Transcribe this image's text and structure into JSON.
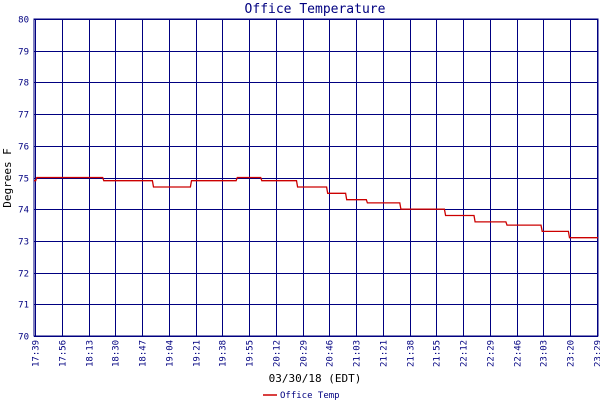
{
  "chart_data": {
    "type": "line",
    "title": "Office Temperature",
    "xlabel": "03/30/18 (EDT)",
    "ylabel": "Degrees F",
    "ylim": [
      70,
      80
    ],
    "yticks": [
      "70",
      "71",
      "72",
      "73",
      "74",
      "75",
      "76",
      "77",
      "78",
      "79",
      "80"
    ],
    "xticks": [
      "17:39",
      "17:56",
      "18:13",
      "18:30",
      "18:47",
      "19:04",
      "19:21",
      "19:38",
      "19:55",
      "20:12",
      "20:29",
      "20:46",
      "21:03",
      "21:21",
      "21:38",
      "21:55",
      "22:12",
      "22:29",
      "22:46",
      "23:03",
      "23:20",
      "23:29"
    ],
    "grid": true,
    "legend_position": "bottom-center",
    "colors": {
      "series": "#cc0000",
      "grid": "#000080",
      "text": "#000080",
      "label": "#000000"
    },
    "series": [
      {
        "name": "Office Temp",
        "x_minutes": [
          0,
          3,
          5,
          123,
          125,
          135,
          137,
          212,
          214,
          280,
          282,
          320,
          322,
          362,
          364,
          406,
          408,
          442,
          450,
          470,
          472,
          524,
          526,
          533,
          535,
          558,
          560,
          566,
          568,
          595,
          597,
          655,
          657,
          692,
          694,
          735,
          737,
          788,
          790,
          845,
          847,
          908,
          910,
          957,
          959,
          1010
        ],
        "y": [
          74.9,
          74.9,
          75.0,
          75.0,
          74.9,
          74.9,
          74.9,
          74.9,
          74.7,
          74.7,
          74.9,
          74.9,
          74.9,
          74.9,
          75.0,
          75.0,
          74.9,
          74.9,
          74.9,
          74.9,
          74.7,
          74.7,
          74.5,
          74.5,
          74.5,
          74.5,
          74.3,
          74.3,
          74.3,
          74.3,
          74.2,
          74.2,
          74.0,
          74.0,
          74.0,
          74.0,
          73.8,
          73.8,
          73.6,
          73.6,
          73.5,
          73.5,
          73.3,
          73.3,
          73.1,
          73.1
        ]
      }
    ]
  }
}
